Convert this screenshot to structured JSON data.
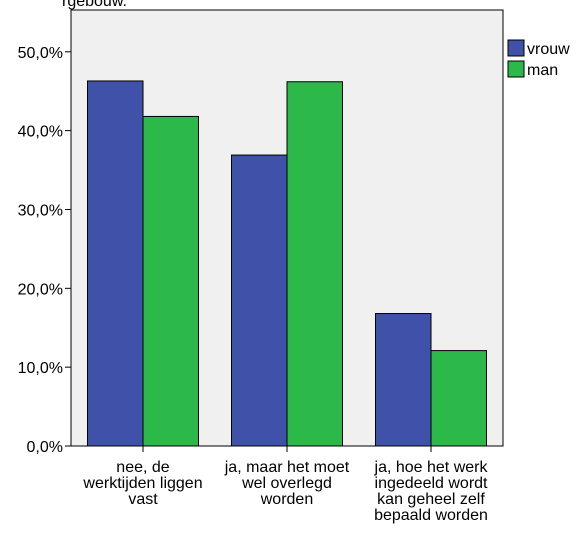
{
  "chart_data": {
    "type": "bar",
    "title": "",
    "xlabel": "",
    "ylabel": "",
    "categories": [
      [
        "nee, de",
        "werktijden liggen",
        "vast"
      ],
      [
        "ja, maar het moet",
        "wel overlegd",
        "worden"
      ],
      [
        "ja, hoe het werk",
        "ingedeeld wordt",
        "kan geheel zelf",
        "bepaald worden"
      ]
    ],
    "series": [
      {
        "name": "vrouw",
        "color": "#3f51a8",
        "values": [
          46.3,
          36.9,
          16.8
        ]
      },
      {
        "name": "man",
        "color": "#2db84a",
        "values": [
          41.8,
          46.2,
          12.1
        ]
      }
    ],
    "ylim": [
      0,
      55.3
    ],
    "yticks": [
      0,
      10,
      20,
      30,
      40,
      50
    ],
    "ytick_labels": [
      "0,0%",
      "10,0%",
      "20,0%",
      "30,0%",
      "40,0%",
      "50,0%"
    ],
    "grid": false,
    "legend_position": "right-top",
    "plot_background": "#f0f0f0",
    "top_clipped_text": "rgebouw."
  }
}
